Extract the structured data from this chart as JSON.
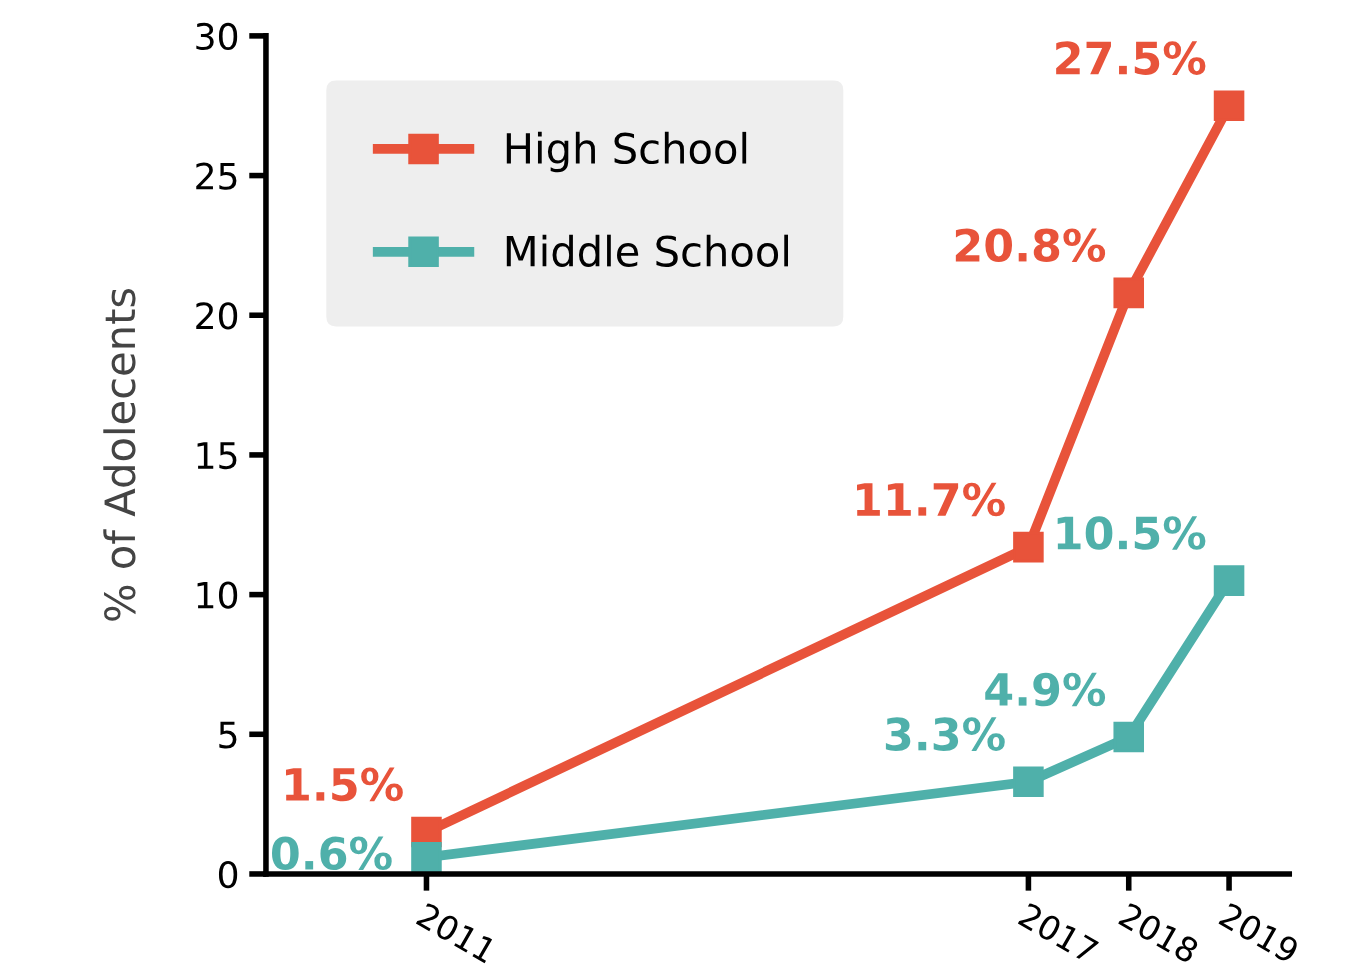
{
  "chart_data": {
    "type": "line",
    "ylabel": "% of Adolecents",
    "x": [
      2011,
      2017,
      2018,
      2019
    ],
    "series": [
      {
        "name": "High School",
        "color": "#e8533a",
        "values": [
          1.5,
          11.7,
          20.8,
          27.5
        ],
        "value_labels": [
          "1.5%",
          "11.7%",
          "20.8%",
          "27.5%"
        ]
      },
      {
        "name": "Middle School",
        "color": "#4fb0aa",
        "values": [
          0.6,
          3.3,
          4.9,
          10.5
        ],
        "value_labels": [
          "0.6%",
          "3.3%",
          "4.9%",
          "10.5%"
        ]
      }
    ],
    "xlim": [
      2009.4,
      2019.6
    ],
    "xticks": [
      2011,
      2017,
      2018,
      2019
    ],
    "ylim": [
      0,
      30
    ],
    "yticks": [
      0,
      5,
      10,
      15,
      20,
      25,
      30
    ],
    "marker": "square",
    "line_style": "solid",
    "grid": false,
    "legend": "top left"
  }
}
